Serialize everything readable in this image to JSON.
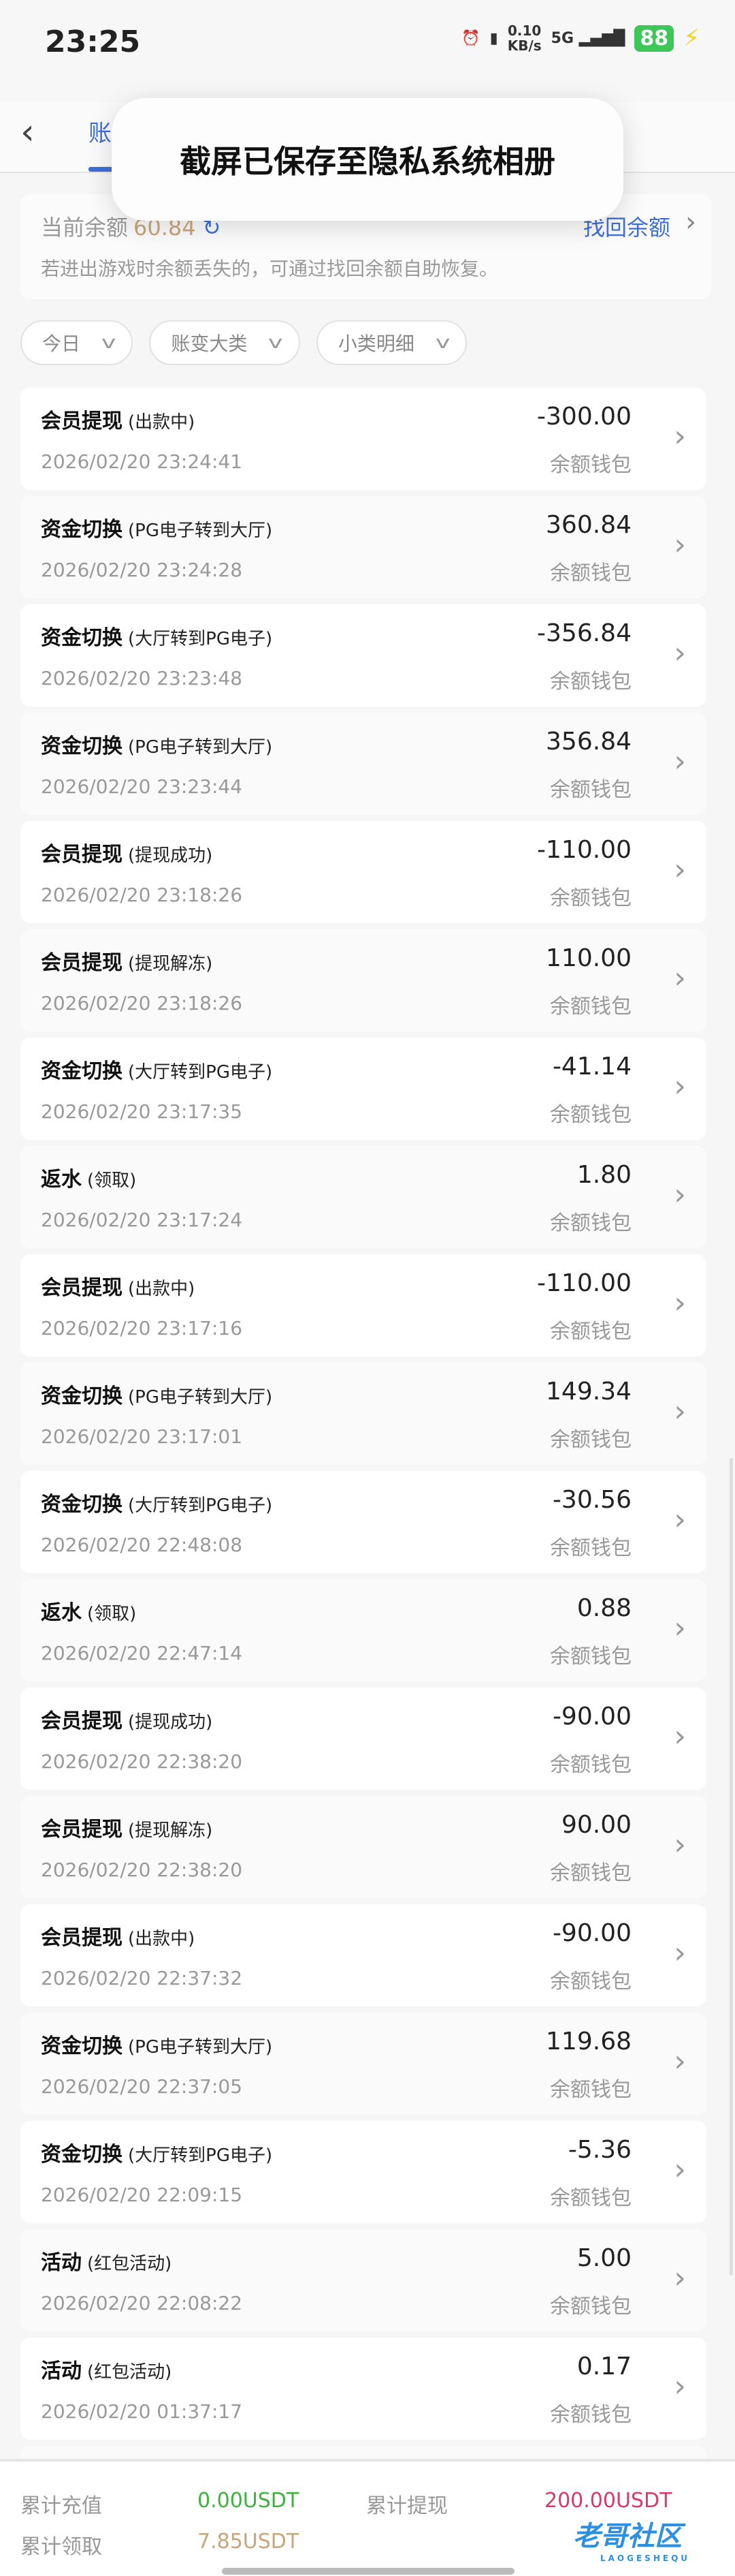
{
  "status": {
    "time": "23:25",
    "net_speed": "0.10",
    "net_unit": "KB/s",
    "signal": "5G",
    "battery": "88"
  },
  "toast": "截屏已保存至隐私系统相册",
  "header": {
    "tab": "账"
  },
  "balance": {
    "label": "当前余额",
    "amount": "60.84",
    "find_label": "找回余额",
    "hint": "若进出游戏时余额丢失的，可通过找回余额自助恢复。"
  },
  "filters": [
    "今日",
    "账变大类",
    "小类明细"
  ],
  "records": [
    {
      "type": "会员提现",
      "sub": "(出款中)",
      "time": "2026/02/20 23:24:41",
      "amount": "-300.00",
      "wallet": "余额钱包"
    },
    {
      "type": "资金切换",
      "sub": "(PG电子转到大厅)",
      "time": "2026/02/20 23:24:28",
      "amount": "360.84",
      "wallet": "余额钱包"
    },
    {
      "type": "资金切换",
      "sub": "(大厅转到PG电子)",
      "time": "2026/02/20 23:23:48",
      "amount": "-356.84",
      "wallet": "余额钱包"
    },
    {
      "type": "资金切换",
      "sub": "(PG电子转到大厅)",
      "time": "2026/02/20 23:23:44",
      "amount": "356.84",
      "wallet": "余额钱包"
    },
    {
      "type": "会员提现",
      "sub": "(提现成功)",
      "time": "2026/02/20 23:18:26",
      "amount": "-110.00",
      "wallet": "余额钱包"
    },
    {
      "type": "会员提现",
      "sub": "(提现解冻)",
      "time": "2026/02/20 23:18:26",
      "amount": "110.00",
      "wallet": "余额钱包"
    },
    {
      "type": "资金切换",
      "sub": "(大厅转到PG电子)",
      "time": "2026/02/20 23:17:35",
      "amount": "-41.14",
      "wallet": "余额钱包"
    },
    {
      "type": "返水",
      "sub": "(领取)",
      "time": "2026/02/20 23:17:24",
      "amount": "1.80",
      "wallet": "余额钱包"
    },
    {
      "type": "会员提现",
      "sub": "(出款中)",
      "time": "2026/02/20 23:17:16",
      "amount": "-110.00",
      "wallet": "余额钱包"
    },
    {
      "type": "资金切换",
      "sub": "(PG电子转到大厅)",
      "time": "2026/02/20 23:17:01",
      "amount": "149.34",
      "wallet": "余额钱包"
    },
    {
      "type": "资金切换",
      "sub": "(大厅转到PG电子)",
      "time": "2026/02/20 22:48:08",
      "amount": "-30.56",
      "wallet": "余额钱包"
    },
    {
      "type": "返水",
      "sub": "(领取)",
      "time": "2026/02/20 22:47:14",
      "amount": "0.88",
      "wallet": "余额钱包"
    },
    {
      "type": "会员提现",
      "sub": "(提现成功)",
      "time": "2026/02/20 22:38:20",
      "amount": "-90.00",
      "wallet": "余额钱包"
    },
    {
      "type": "会员提现",
      "sub": "(提现解冻)",
      "time": "2026/02/20 22:38:20",
      "amount": "90.00",
      "wallet": "余额钱包"
    },
    {
      "type": "会员提现",
      "sub": "(出款中)",
      "time": "2026/02/20 22:37:32",
      "amount": "-90.00",
      "wallet": "余额钱包"
    },
    {
      "type": "资金切换",
      "sub": "(PG电子转到大厅)",
      "time": "2026/02/20 22:37:05",
      "amount": "119.68",
      "wallet": "余额钱包"
    },
    {
      "type": "资金切换",
      "sub": "(大厅转到PG电子)",
      "time": "2026/02/20 22:09:15",
      "amount": "-5.36",
      "wallet": "余额钱包"
    },
    {
      "type": "活动",
      "sub": "(红包活动)",
      "time": "2026/02/20 22:08:22",
      "amount": "5.00",
      "wallet": "余额钱包"
    },
    {
      "type": "活动",
      "sub": "(红包活动)",
      "time": "2026/02/20 01:37:17",
      "amount": "0.17",
      "wallet": "余额钱包"
    },
    {
      "type": "",
      "sub": "",
      "time": "",
      "amount": "",
      "wallet": ""
    }
  ],
  "totals": {
    "deposit_label": "累计充值",
    "deposit": "0.00USDT",
    "withdraw_label": "累计提现",
    "withdraw": "200.00USDT",
    "claim_label": "累计领取",
    "claim": "7.85USDT"
  },
  "watermark": {
    "text": "老哥社区",
    "sub": "LAOGESHEQU"
  },
  "colors": {
    "accent": "#3d6fd6",
    "deposit": "#3cb43c",
    "withdraw": "#d83a6a",
    "claim": "#c9a57a"
  }
}
